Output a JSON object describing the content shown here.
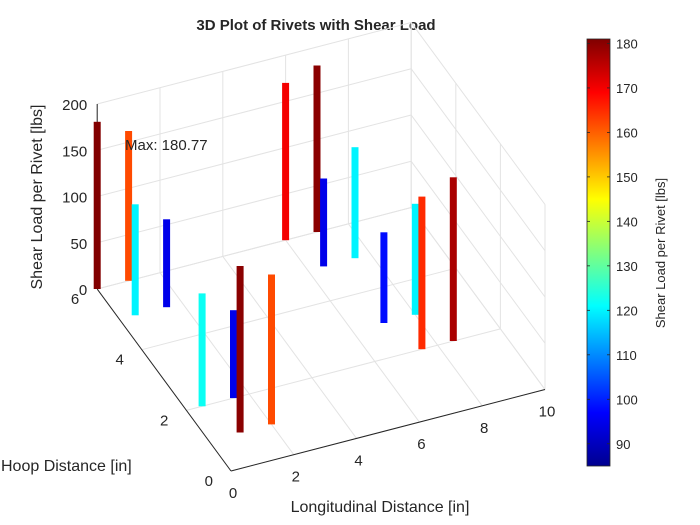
{
  "chart_data": {
    "type": "bar3d",
    "title": "3D Plot of Rivets with Shear Load",
    "xlabel": "Longitudinal Distance [in]",
    "ylabel": "Hoop Distance [in]",
    "zlabel": "Shear Load per Rivet [lbs]",
    "xlim": [
      0,
      10
    ],
    "ylim": [
      0,
      6
    ],
    "zlim": [
      0,
      200
    ],
    "x_ticks": [
      "0",
      "2",
      "4",
      "6",
      "8",
      "10"
    ],
    "y_ticks": [
      "0",
      "2",
      "4",
      "6"
    ],
    "z_ticks": [
      "0",
      "50",
      "100",
      "150",
      "200"
    ],
    "grid": true,
    "annotation": "Max: 180.77",
    "colorbar": {
      "label": "Shear Load per Rivet [lbs]",
      "range": [
        85,
        181
      ],
      "ticks": [
        "90",
        "100",
        "110",
        "120",
        "130",
        "140",
        "150",
        "160",
        "170",
        "180"
      ],
      "colormap": "jet"
    },
    "points": [
      {
        "x": 0,
        "y": 6,
        "z": 180.77
      },
      {
        "x": 0.5,
        "y": 5,
        "z": 120
      },
      {
        "x": 1,
        "y": 6,
        "z": 162
      },
      {
        "x": 1.5,
        "y": 5,
        "z": 95
      },
      {
        "x": 0.5,
        "y": 2,
        "z": 122
      },
      {
        "x": 1,
        "y": 1,
        "z": 180
      },
      {
        "x": 1.5,
        "y": 2,
        "z": 95
      },
      {
        "x": 2,
        "y": 1,
        "z": 162
      },
      {
        "x": 6,
        "y": 6,
        "z": 170
      },
      {
        "x": 6.5,
        "y": 5,
        "z": 95
      },
      {
        "x": 7,
        "y": 6,
        "z": 180
      },
      {
        "x": 7.5,
        "y": 5,
        "z": 120
      },
      {
        "x": 7,
        "y": 3,
        "z": 98
      },
      {
        "x": 7.5,
        "y": 2,
        "z": 165
      },
      {
        "x": 8,
        "y": 3,
        "z": 120
      },
      {
        "x": 8.5,
        "y": 2,
        "z": 177
      }
    ]
  }
}
